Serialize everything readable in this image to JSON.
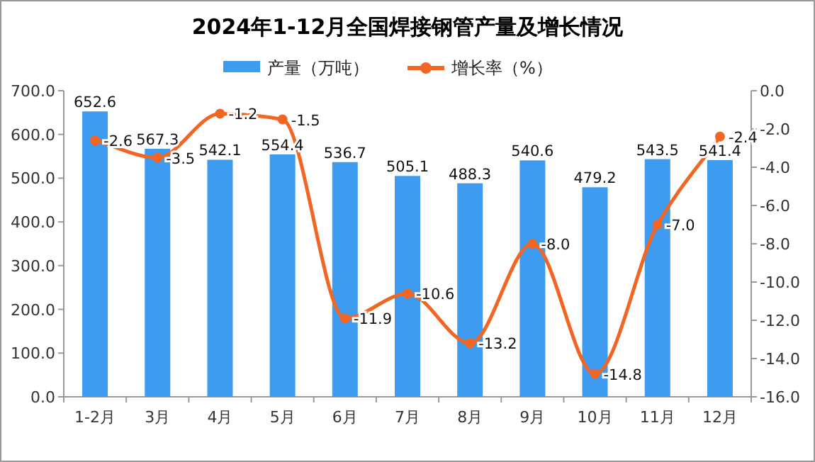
{
  "chart_data": {
    "type": "bar",
    "title": "2024年1-12月全国焊接钢管产量及增长情况",
    "categories": [
      "1-2月",
      "3月",
      "4月",
      "5月",
      "6月",
      "7月",
      "8月",
      "9月",
      "10月",
      "11月",
      "12月"
    ],
    "series": [
      {
        "name": "产量（万吨）",
        "color": "#3d9bf0",
        "values": [
          652.6,
          567.3,
          542.1,
          554.4,
          536.7,
          505.1,
          488.3,
          540.6,
          479.2,
          543.5,
          541.4
        ]
      },
      {
        "name": "增长率（%）",
        "type": "line",
        "axis": "y2",
        "color": "#f26522",
        "marker": "circle",
        "values": [
          -2.6,
          -3.5,
          -1.2,
          -1.5,
          -11.9,
          -10.6,
          -13.2,
          -8.0,
          -14.8,
          -7.0,
          -2.4
        ],
        "value_labels": [
          "-2.6",
          "-3.5",
          "-1.2",
          "-1.5",
          "-11.9",
          "-10.6",
          "-13.2",
          "-8.0",
          "-14.8",
          "-7.0",
          "-2.4"
        ]
      }
    ],
    "ylim": [
      0,
      700
    ],
    "yticks": [
      {
        "value": 0,
        "label": "0.0"
      },
      {
        "value": 100,
        "label": "100.0"
      },
      {
        "value": 200,
        "label": "200.0"
      },
      {
        "value": 300,
        "label": "300.0"
      },
      {
        "value": 400,
        "label": "400.0"
      },
      {
        "value": 500,
        "label": "500.0"
      },
      {
        "value": 600,
        "label": "600.0"
      },
      {
        "value": 700,
        "label": "700.0"
      }
    ],
    "y2lim": [
      -16,
      0
    ],
    "y2ticks": [
      {
        "value": -16,
        "label": "-16.0"
      },
      {
        "value": -14,
        "label": "-14.0"
      },
      {
        "value": -12,
        "label": "-12.0"
      },
      {
        "value": -10,
        "label": "-10.0"
      },
      {
        "value": -8,
        "label": "-8.0"
      },
      {
        "value": -6,
        "label": "-6.0"
      },
      {
        "value": -4,
        "label": "-4.0"
      },
      {
        "value": -2,
        "label": "-2.0"
      },
      {
        "value": 0,
        "label": "0.0"
      }
    ],
    "data_labels": true,
    "legend": "top",
    "grid": false
  }
}
